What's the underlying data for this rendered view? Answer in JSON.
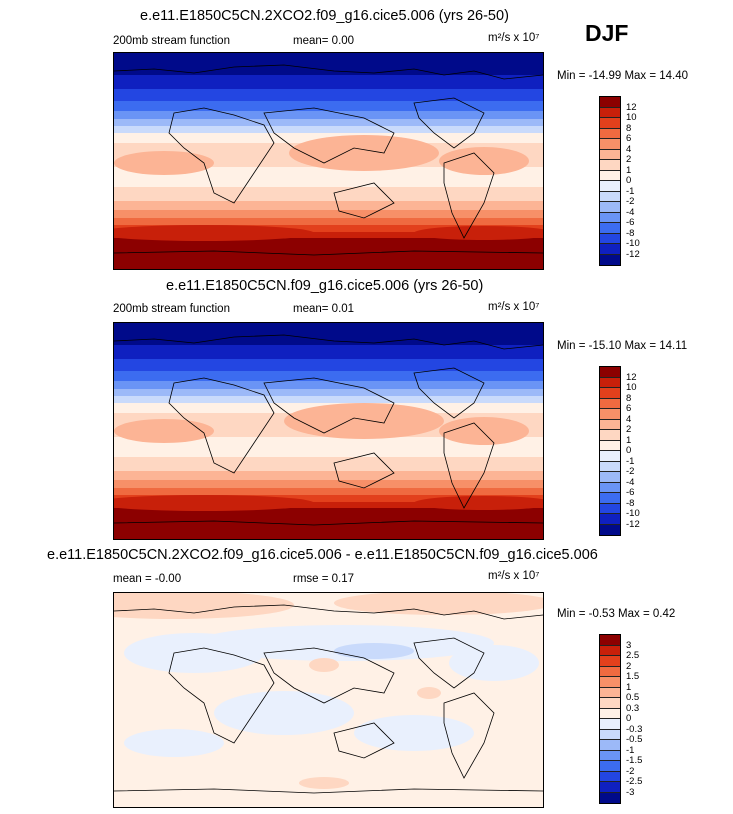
{
  "season": "DJF",
  "palettes": {
    "sf": [
      "#000a8a",
      "#0f20c0",
      "#2346e2",
      "#3c6cf0",
      "#6a94f5",
      "#9cb9f8",
      "#c9dafb",
      "#e9f0fd",
      "#fff1e6",
      "#fed7c2",
      "#fcb495",
      "#f79068",
      "#ef6a40",
      "#e2401c",
      "#c8200a",
      "#8c0000"
    ],
    "diff": [
      "#000a8a",
      "#0f20c0",
      "#2346e2",
      "#3c6cf0",
      "#6a94f5",
      "#9cb9f8",
      "#c9dafb",
      "#e9f0fd",
      "#fff1e6",
      "#fed7c2",
      "#fcb495",
      "#f79068",
      "#ef6a40",
      "#e2401c",
      "#c8200a",
      "#8c0000"
    ]
  },
  "panels": [
    {
      "title": "e.e11.E1850C5CN.2XCO2.f09_g16.cice5.006 (yrs 26-50)",
      "left_label": "200mb stream function",
      "mean_label": "mean=   0.00",
      "units_label": "m²/s x 10⁷",
      "minmax": "Min = -14.99 Max =  14.40",
      "cb_labels": [
        "12",
        "10",
        "8",
        "6",
        "4",
        "2",
        "1",
        "0",
        "-1",
        "-2",
        "-4",
        "-6",
        "-8",
        "-10",
        "-12"
      ]
    },
    {
      "title": "e.e11.E1850C5CN.f09_g16.cice5.006 (yrs 26-50)",
      "left_label": "200mb stream function",
      "mean_label": "mean=   0.01",
      "units_label": "m²/s x 10⁷",
      "minmax": "Min = -15.10 Max =  14.11",
      "cb_labels": [
        "12",
        "10",
        "8",
        "6",
        "4",
        "2",
        "1",
        "0",
        "-1",
        "-2",
        "-4",
        "-6",
        "-8",
        "-10",
        "-12"
      ]
    },
    {
      "title": "e.e11.E1850C5CN.2XCO2.f09_g16.cice5.006 - e.e11.E1850C5CN.f09_g16.cice5.006",
      "left_label": "mean = -0.00",
      "mean_label": "rmse =   0.17",
      "units_label": "m²/s x 10⁷",
      "minmax": "Min =  -0.53 Max =   0.42",
      "cb_labels": [
        "3",
        "2.5",
        "2",
        "1.5",
        "1",
        "0.5",
        "0.3",
        "0",
        "-0.3",
        "-0.5",
        "-1",
        "-1.5",
        "-2",
        "-2.5",
        "-3"
      ]
    }
  ]
}
